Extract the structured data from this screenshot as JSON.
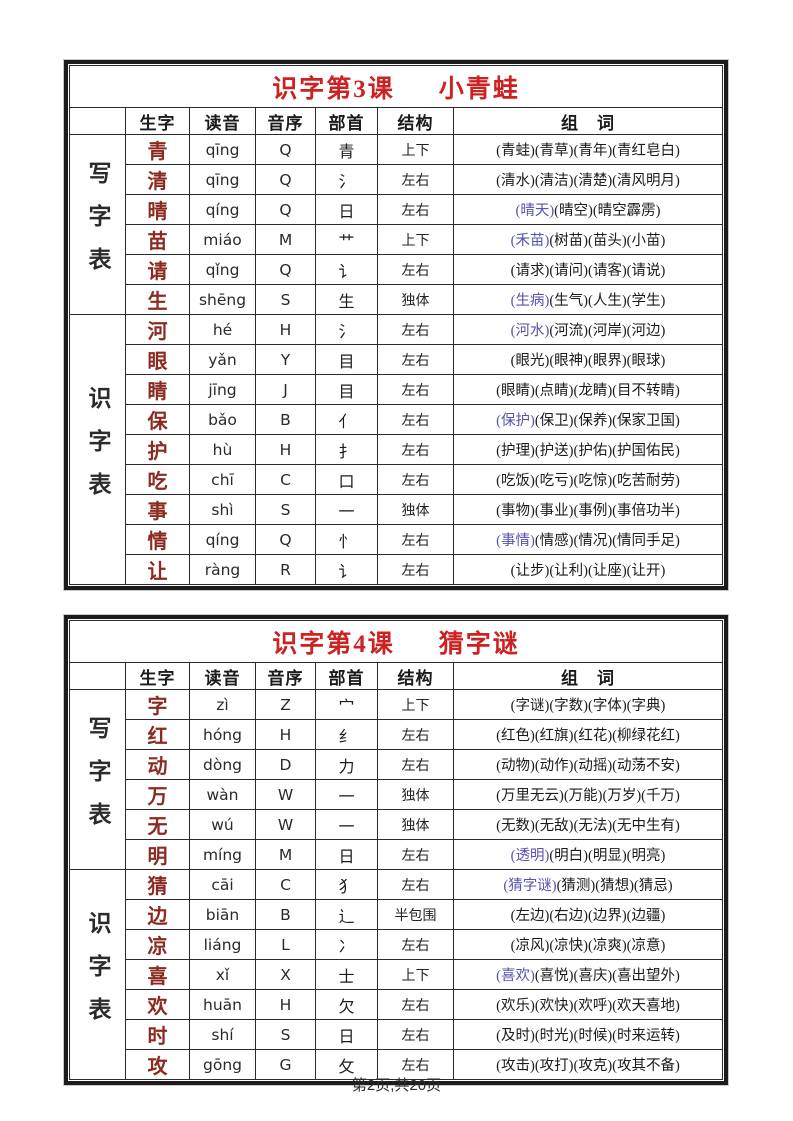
{
  "columns": [
    "生字",
    "读音",
    "音序",
    "部首",
    "结构",
    "组　词"
  ],
  "colors": {
    "title_red": "#cc2222",
    "char_red": "#8b2a21",
    "highlight_blue": "#5752b0",
    "border_dark": "#1c1c1c"
  },
  "footer": "第2页,共20页",
  "tables": [
    {
      "title_lesson": "识字第3课",
      "title_name": "小青蛙",
      "sections": [
        {
          "label": "写字表",
          "rows": [
            {
              "char": "青",
              "pinyin": "qīng",
              "initial": "Q",
              "radical": "青",
              "structure": "上下",
              "words": [
                {
                  "t": "(青蛙)(青草)(青年)(青红皂白)",
                  "hl": false
                }
              ]
            },
            {
              "char": "清",
              "pinyin": "qīng",
              "initial": "Q",
              "radical": "氵",
              "structure": "左右",
              "words": [
                {
                  "t": "(清水)(清洁)(清楚)(清风明月)",
                  "hl": false
                }
              ]
            },
            {
              "char": "晴",
              "pinyin": "qíng",
              "initial": "Q",
              "radical": "日",
              "structure": "左右",
              "words": [
                {
                  "t": "(晴天)",
                  "hl": true
                },
                {
                  "t": "(晴空)(晴空霹雳)",
                  "hl": false
                }
              ]
            },
            {
              "char": "苗",
              "pinyin": "miáo",
              "initial": "M",
              "radical": "艹",
              "structure": "上下",
              "words": [
                {
                  "t": "(禾苗)",
                  "hl": true
                },
                {
                  "t": "(树苗)(苗头)(小苗)",
                  "hl": false
                }
              ]
            },
            {
              "char": "请",
              "pinyin": "qǐng",
              "initial": "Q",
              "radical": "讠",
              "structure": "左右",
              "words": [
                {
                  "t": "(请求)(请问)(请客)(请说)",
                  "hl": false
                }
              ]
            },
            {
              "char": "生",
              "pinyin": "shēng",
              "initial": "S",
              "radical": "生",
              "structure": "独体",
              "words": [
                {
                  "t": "(生病)",
                  "hl": true
                },
                {
                  "t": "(生气)(人生)(学生)",
                  "hl": false
                }
              ]
            }
          ]
        },
        {
          "label": "识字表",
          "rows": [
            {
              "char": "河",
              "pinyin": "hé",
              "initial": "H",
              "radical": "氵",
              "structure": "左右",
              "words": [
                {
                  "t": "(河水)",
                  "hl": true
                },
                {
                  "t": "(河流)(河岸)(河边)",
                  "hl": false
                }
              ]
            },
            {
              "char": "眼",
              "pinyin": "yǎn",
              "initial": "Y",
              "radical": "目",
              "structure": "左右",
              "words": [
                {
                  "t": "(眼光)(眼神)(眼界)(眼球)",
                  "hl": false
                }
              ]
            },
            {
              "char": "睛",
              "pinyin": "jīng",
              "initial": "J",
              "radical": "目",
              "structure": "左右",
              "words": [
                {
                  "t": "(眼睛)(点睛)(龙睛)(目不转睛)",
                  "hl": false
                }
              ]
            },
            {
              "char": "保",
              "pinyin": "bǎo",
              "initial": "B",
              "radical": "亻",
              "structure": "左右",
              "words": [
                {
                  "t": "(保护)",
                  "hl": true
                },
                {
                  "t": "(保卫)(保养)(保家卫国)",
                  "hl": false
                }
              ]
            },
            {
              "char": "护",
              "pinyin": "hù",
              "initial": "H",
              "radical": "扌",
              "structure": "左右",
              "words": [
                {
                  "t": "(护理)(护送)(护佑)(护国佑民)",
                  "hl": false
                }
              ]
            },
            {
              "char": "吃",
              "pinyin": "chī",
              "initial": "C",
              "radical": "口",
              "structure": "左右",
              "words": [
                {
                  "t": "(吃饭)(吃亏)(吃惊)(吃苦耐劳)",
                  "hl": false
                }
              ]
            },
            {
              "char": "事",
              "pinyin": "shì",
              "initial": "S",
              "radical": "一",
              "structure": "独体",
              "words": [
                {
                  "t": "(事物)(事业)(事例)(事倍功半)",
                  "hl": false
                }
              ]
            },
            {
              "char": "情",
              "pinyin": "qíng",
              "initial": "Q",
              "radical": "忄",
              "structure": "左右",
              "words": [
                {
                  "t": "(事情)",
                  "hl": true
                },
                {
                  "t": "(情感)(情况)(情同手足)",
                  "hl": false
                }
              ]
            },
            {
              "char": "让",
              "pinyin": "ràng",
              "initial": "R",
              "radical": "讠",
              "structure": "左右",
              "words": [
                {
                  "t": "(让步)(让利)(让座)(让开)",
                  "hl": false
                }
              ]
            }
          ]
        }
      ]
    },
    {
      "title_lesson": "识字第4课",
      "title_name": "猜字谜",
      "sections": [
        {
          "label": "写字表",
          "rows": [
            {
              "char": "字",
              "pinyin": "zì",
              "initial": "Z",
              "radical": "宀",
              "structure": "上下",
              "words": [
                {
                  "t": "(字谜)(字数)(字体)(字典)",
                  "hl": false
                }
              ]
            },
            {
              "char": "红",
              "pinyin": "hóng",
              "initial": "H",
              "radical": "纟",
              "structure": "左右",
              "words": [
                {
                  "t": "(红色)(红旗)(红花)(柳绿花红)",
                  "hl": false
                }
              ]
            },
            {
              "char": "动",
              "pinyin": "dòng",
              "initial": "D",
              "radical": "力",
              "structure": "左右",
              "words": [
                {
                  "t": "(动物)(动作)(动摇)(动荡不安)",
                  "hl": false
                }
              ]
            },
            {
              "char": "万",
              "pinyin": "wàn",
              "initial": "W",
              "radical": "一",
              "structure": "独体",
              "words": [
                {
                  "t": "(万里无云)(万能)(万岁)(千万)",
                  "hl": false
                }
              ]
            },
            {
              "char": "无",
              "pinyin": "wú",
              "initial": "W",
              "radical": "一",
              "structure": "独体",
              "words": [
                {
                  "t": "(无数)(无敌)(无法)(无中生有)",
                  "hl": false
                }
              ]
            },
            {
              "char": "明",
              "pinyin": "míng",
              "initial": "M",
              "radical": "日",
              "structure": "左右",
              "words": [
                {
                  "t": "(透明)",
                  "hl": true
                },
                {
                  "t": "(明白)(明显)(明亮)",
                  "hl": false
                }
              ]
            }
          ]
        },
        {
          "label": "识字表",
          "rows": [
            {
              "char": "猜",
              "pinyin": "cāi",
              "initial": "C",
              "radical": "犭",
              "structure": "左右",
              "words": [
                {
                  "t": "(猜字谜)",
                  "hl": true
                },
                {
                  "t": "(猜测)(猜想)(猜忌)",
                  "hl": false
                }
              ]
            },
            {
              "char": "边",
              "pinyin": "biān",
              "initial": "B",
              "radical": "辶",
              "structure": "半包围",
              "words": [
                {
                  "t": "(左边)(右边)(边界)(边疆)",
                  "hl": false
                }
              ]
            },
            {
              "char": "凉",
              "pinyin": "liáng",
              "initial": "L",
              "radical": "冫",
              "structure": "左右",
              "words": [
                {
                  "t": "(凉风)(凉快)(凉爽)(凉意)",
                  "hl": false
                }
              ]
            },
            {
              "char": "喜",
              "pinyin": "xǐ",
              "initial": "X",
              "radical": "士",
              "structure": "上下",
              "words": [
                {
                  "t": "(喜欢)",
                  "hl": true
                },
                {
                  "t": "(喜悦)(喜庆)(喜出望外)",
                  "hl": false
                }
              ]
            },
            {
              "char": "欢",
              "pinyin": "huān",
              "initial": "H",
              "radical": "欠",
              "structure": "左右",
              "words": [
                {
                  "t": "(欢乐)(欢快)(欢呼)(欢天喜地)",
                  "hl": false
                }
              ]
            },
            {
              "char": "时",
              "pinyin": "shí",
              "initial": "S",
              "radical": "日",
              "structure": "左右",
              "words": [
                {
                  "t": "(及时)(时光)(时候)(时来运转)",
                  "hl": false
                }
              ]
            },
            {
              "char": "攻",
              "pinyin": "gōng",
              "initial": "G",
              "radical": "攵",
              "structure": "左右",
              "words": [
                {
                  "t": "(攻击)(攻打)(攻克)(攻其不备)",
                  "hl": false
                }
              ]
            }
          ]
        }
      ]
    }
  ]
}
